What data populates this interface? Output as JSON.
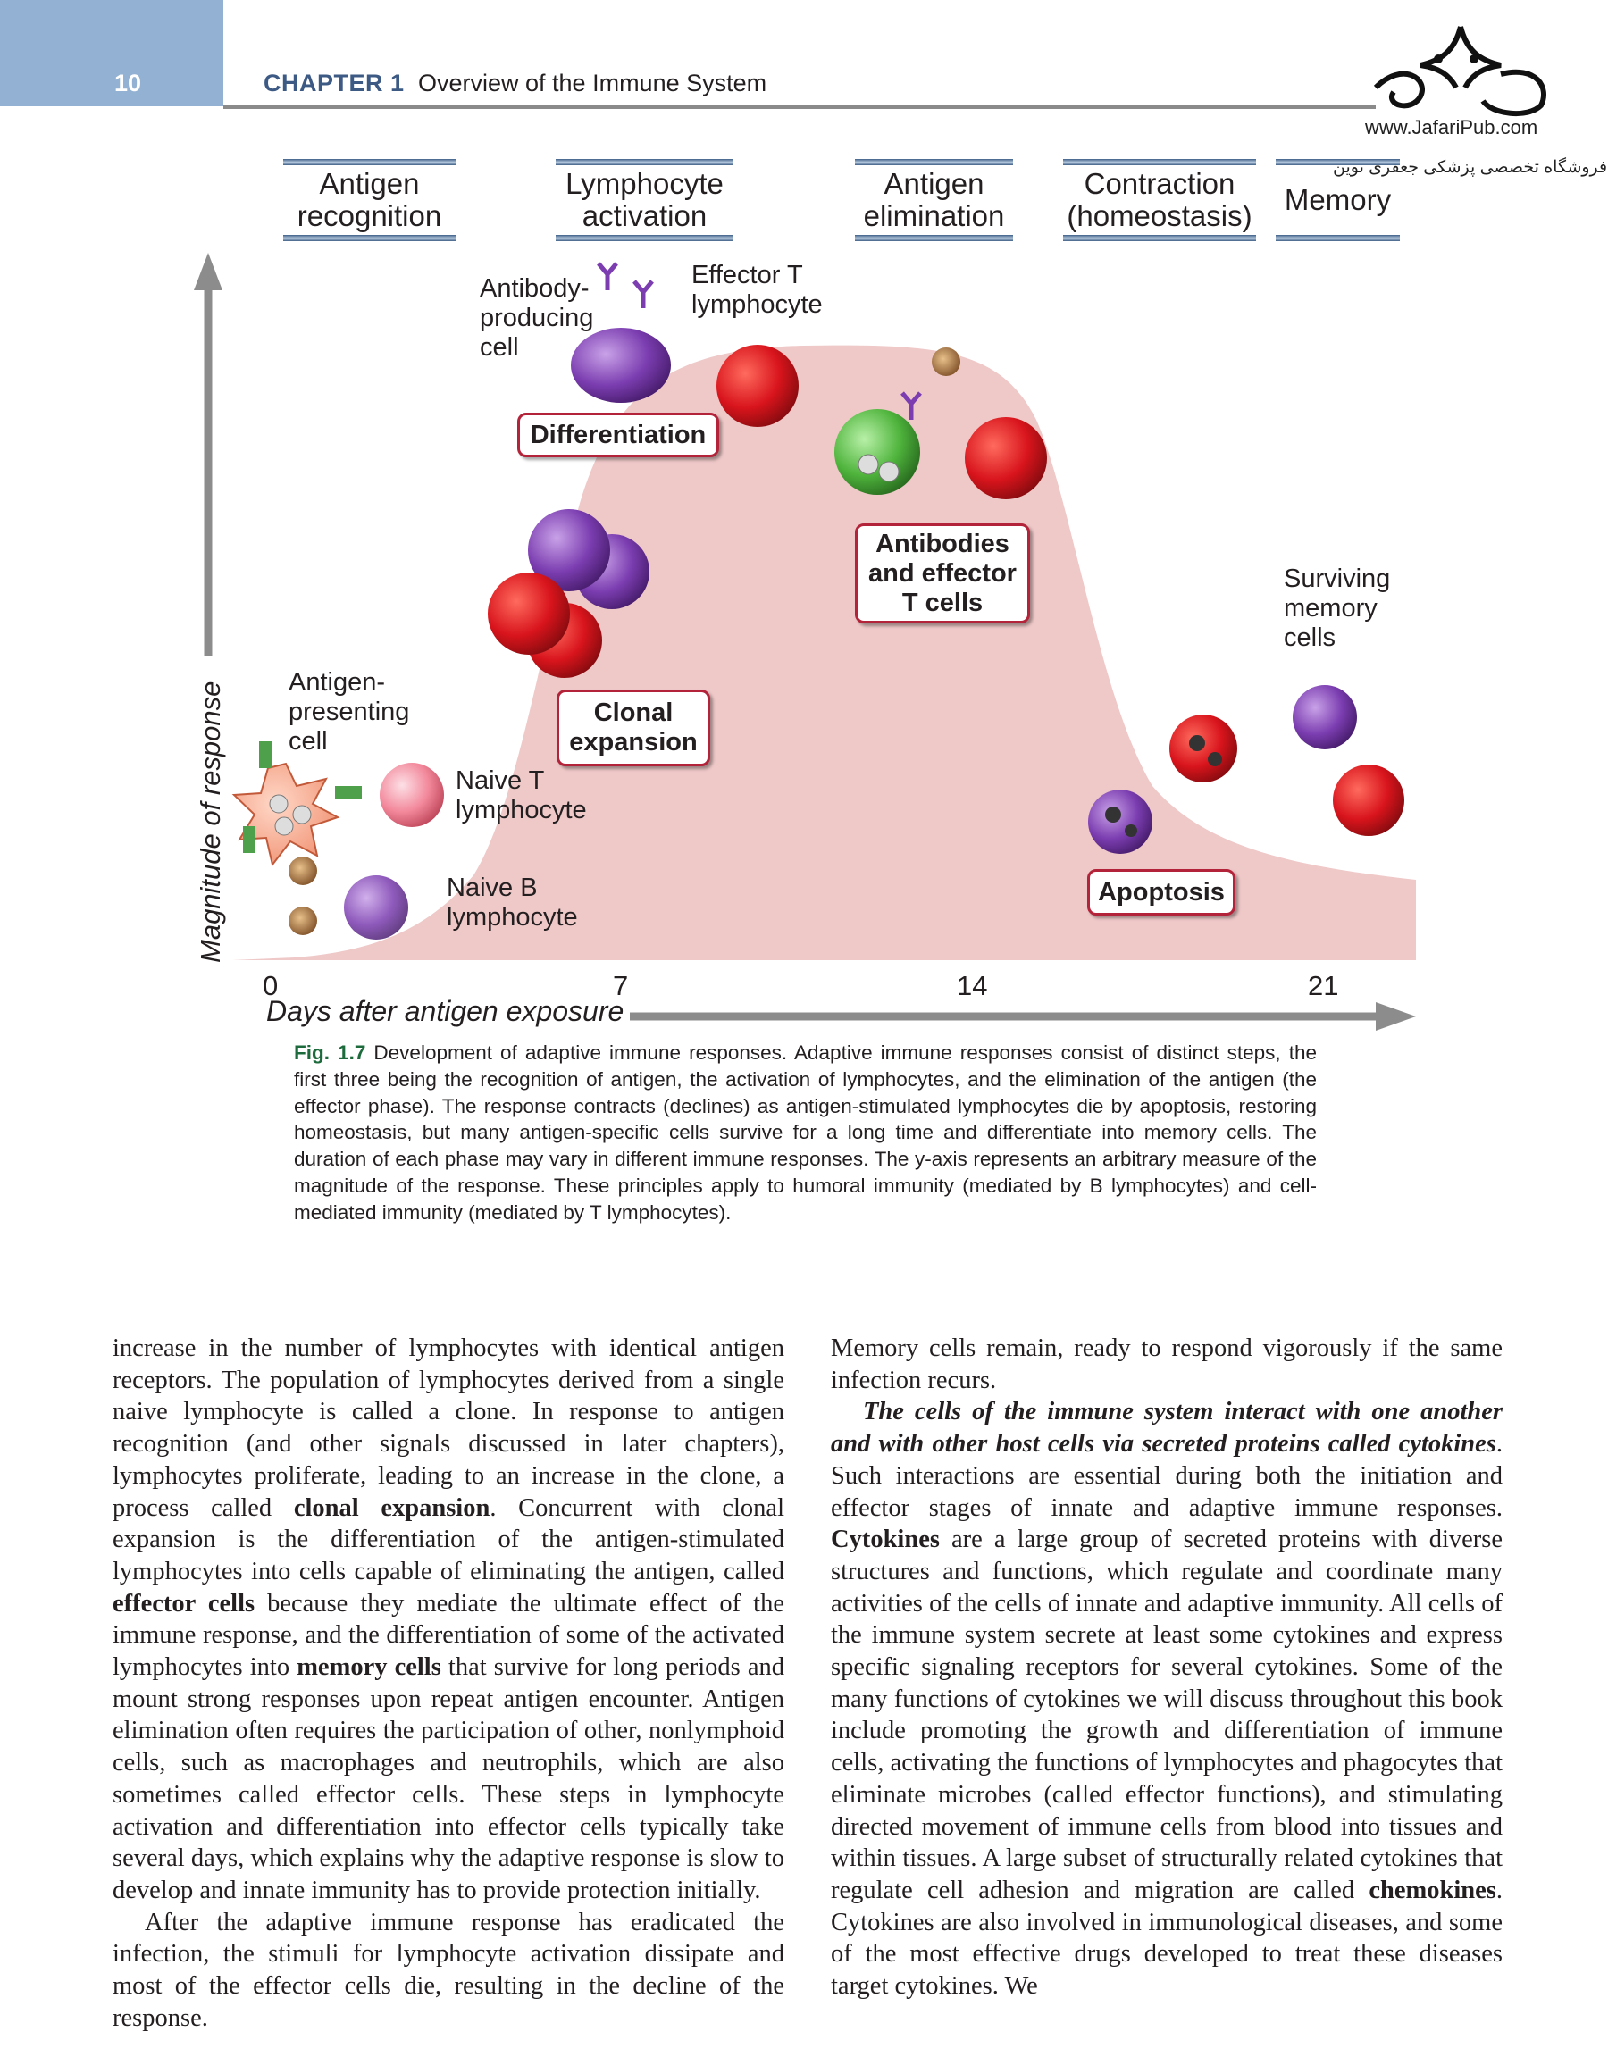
{
  "header": {
    "page_number": "10",
    "chapter": "CHAPTER 1",
    "chapter_title": "Overview of the Immune System",
    "logo_url": "www.JafariPub.com",
    "logo_subtitle": "فروشگاه تخصصی پزشکی جعفری نوین"
  },
  "figure": {
    "phases": [
      "Antigen recognition",
      "Lymphocyte activation",
      "Antigen elimination",
      "Contraction (homeostasis)",
      "Memory"
    ],
    "labels": {
      "antibody_producing_cell": "Antibody-producing cell",
      "effector_t": "Effector T lymphocyte",
      "surviving_memory": "Surviving memory cells",
      "apc": "Antigen-presenting cell",
      "naive_t": "Naive T lymphocyte",
      "naive_b": "Naive B lymphocyte"
    },
    "boxes": {
      "differentiation": "Differentiation",
      "antibodies": "Antibodies and effector T cells",
      "clonal": "Clonal expansion",
      "apoptosis": "Apoptosis"
    },
    "y_label": "Magnitude of response",
    "x_label": "Days after antigen exposure",
    "x_ticks": [
      "0",
      "7",
      "14",
      "21"
    ],
    "colors": {
      "area": "#efc8c8",
      "axis": "#8c8c8c",
      "box_border": "#b3243a",
      "header_block": "#93b1d2"
    }
  },
  "caption": {
    "fig_label": "Fig. 1.7",
    "title": "Development of adaptive immune responses.",
    "text": "Adaptive immune responses consist of distinct steps, the first three being the recognition of antigen, the activation of lymphocytes, and the elimination of the antigen (the effector phase). The response contracts (declines) as antigen-stimulated lymphocytes die by apoptosis, restoring homeostasis, but many antigen-specific cells survive for a long time and differentiate into memory cells. The duration of each phase may vary in different immune responses. The y-axis represents an arbitrary measure of the magnitude of the response. These principles apply to humoral immunity (mediated by B lymphocytes) and cell-mediated immunity (mediated by T lymphocytes)."
  },
  "body": {
    "left": {
      "p1a": "increase in the number of lymphocytes with identical antigen receptors. The population of lymphocytes derived from a single naive lymphocyte is called a clone. In response to antigen recognition (and other signals discussed in later chapters), lymphocytes proliferate, leading to an increase in the clone, a process called ",
      "p1b": "clonal expansion",
      "p1c": ". Concurrent with clonal expansion is the differentiation of the antigen-stimulated lymphocytes into cells capable of eliminating the antigen, called ",
      "p1d": "effector cells",
      "p1e": " because they mediate the ultimate effect of the immune response, and the differentiation of some of the activated lymphocytes into ",
      "p1f": "memory cells",
      "p1g": " that survive for long periods and mount strong responses upon repeat antigen encounter. Antigen elimination often requires the participation of other, nonlymphoid cells, such as macrophages and neutrophils, which are also sometimes called effector cells. These steps in lymphocyte activation and differentiation into effector cells typically take several days, which explains why the adaptive response is slow to develop and innate immunity has to provide protection initially.",
      "p2": "After the adaptive immune response has eradicated the infection, the stimuli for lymphocyte activation dissipate and most of the effector cells die, resulting in the decline of the response."
    },
    "right": {
      "p1": "Memory cells remain, ready to respond vigorously if the same infection recurs.",
      "p2a": "The cells of the immune system interact with one another and with other host cells via secreted proteins called cytokines",
      "p2b": ". Such interactions are essential during both the initiation and effector stages of innate and adaptive immune responses. ",
      "p2c": "Cytokines",
      "p2d": " are a large group of secreted proteins with diverse structures and functions, which regulate and coordinate many activities of the cells of innate and adaptive immunity. All cells of the immune system secrete at least some cytokines and express specific signaling receptors for several cytokines. Some of the many functions of cytokines we will discuss throughout this book include promoting the growth and differentiation of immune cells, activating the functions of lymphocytes and phagocytes that eliminate microbes (called effector functions), and stimulating directed movement of immune cells from blood into tissues and within tissues. A large subset of structurally related cytokines that regulate cell adhesion and migration are called ",
      "p2e": "chemokines",
      "p2f": ". Cytokines are also involved in immunological diseases, and some of the most effective drugs developed to treat these diseases target cytokines. We"
    }
  }
}
